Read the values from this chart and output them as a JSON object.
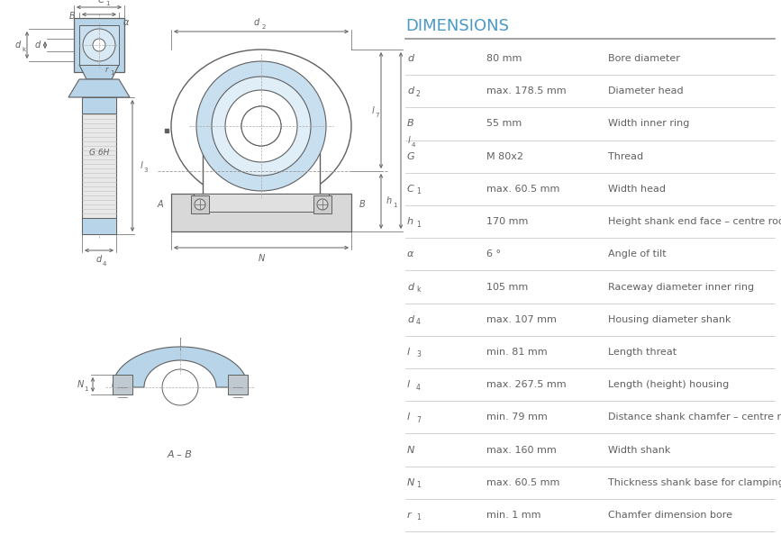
{
  "title": "DIMENSIONS",
  "title_color": "#4a9ac4",
  "title_fontsize": 13,
  "bg_color": "#ffffff",
  "table_rows": [
    {
      "symbol": "d",
      "sub": "",
      "value": "80 mm",
      "prefix": "",
      "description": "Bore diameter"
    },
    {
      "symbol": "d",
      "sub": "2",
      "value": "178.5 mm",
      "prefix": "max.",
      "description": "Diameter head"
    },
    {
      "symbol": "B",
      "sub": "",
      "value": "55 mm",
      "prefix": "",
      "description": "Width inner ring"
    },
    {
      "symbol": "G",
      "sub": "",
      "value": "M 80x2",
      "prefix": "",
      "description": "Thread"
    },
    {
      "symbol": "C",
      "sub": "1",
      "value": "60.5 mm",
      "prefix": "max.",
      "description": "Width head"
    },
    {
      "symbol": "h",
      "sub": "1",
      "value": "170 mm",
      "prefix": "",
      "description": "Height shank end face – centre rod end eye"
    },
    {
      "symbol": "α",
      "sub": "",
      "value": "6 °",
      "prefix": "",
      "description": "Angle of tilt"
    },
    {
      "symbol": "d",
      "sub": "k",
      "value": "105 mm",
      "prefix": "",
      "description": "Raceway diameter inner ring"
    },
    {
      "symbol": "d",
      "sub": "4",
      "value": "107 mm",
      "prefix": "max.",
      "description": "Housing diameter shank"
    },
    {
      "symbol": "l",
      "sub": "3",
      "value": "81 mm",
      "prefix": "min.",
      "description": "Length threat"
    },
    {
      "symbol": "l",
      "sub": "4",
      "value": "267.5 mm",
      "prefix": "max.",
      "description": "Length (height) housing"
    },
    {
      "symbol": "l",
      "sub": "7",
      "value": "79 mm",
      "prefix": "min.",
      "description": "Distance shank chamfer – centre rod end eye"
    },
    {
      "symbol": "N",
      "sub": "",
      "value": "160 mm",
      "prefix": "max.",
      "description": "Width shank"
    },
    {
      "symbol": "N",
      "sub": "1",
      "value": "60.5 mm",
      "prefix": "max.",
      "description": "Thickness shank base for clamping bolts"
    },
    {
      "symbol": "r",
      "sub": "1",
      "value": "1 mm",
      "prefix": "min.",
      "description": "Chamfer dimension bore"
    }
  ],
  "line_color": "#b0b0b0",
  "text_color": "#606060",
  "symbol_color": "#606060",
  "drawing_line_color": "#606060",
  "drawing_blue": "#b8d4e8",
  "drawing_blue2": "#c8dff0",
  "drawing_bg": "#ffffff"
}
